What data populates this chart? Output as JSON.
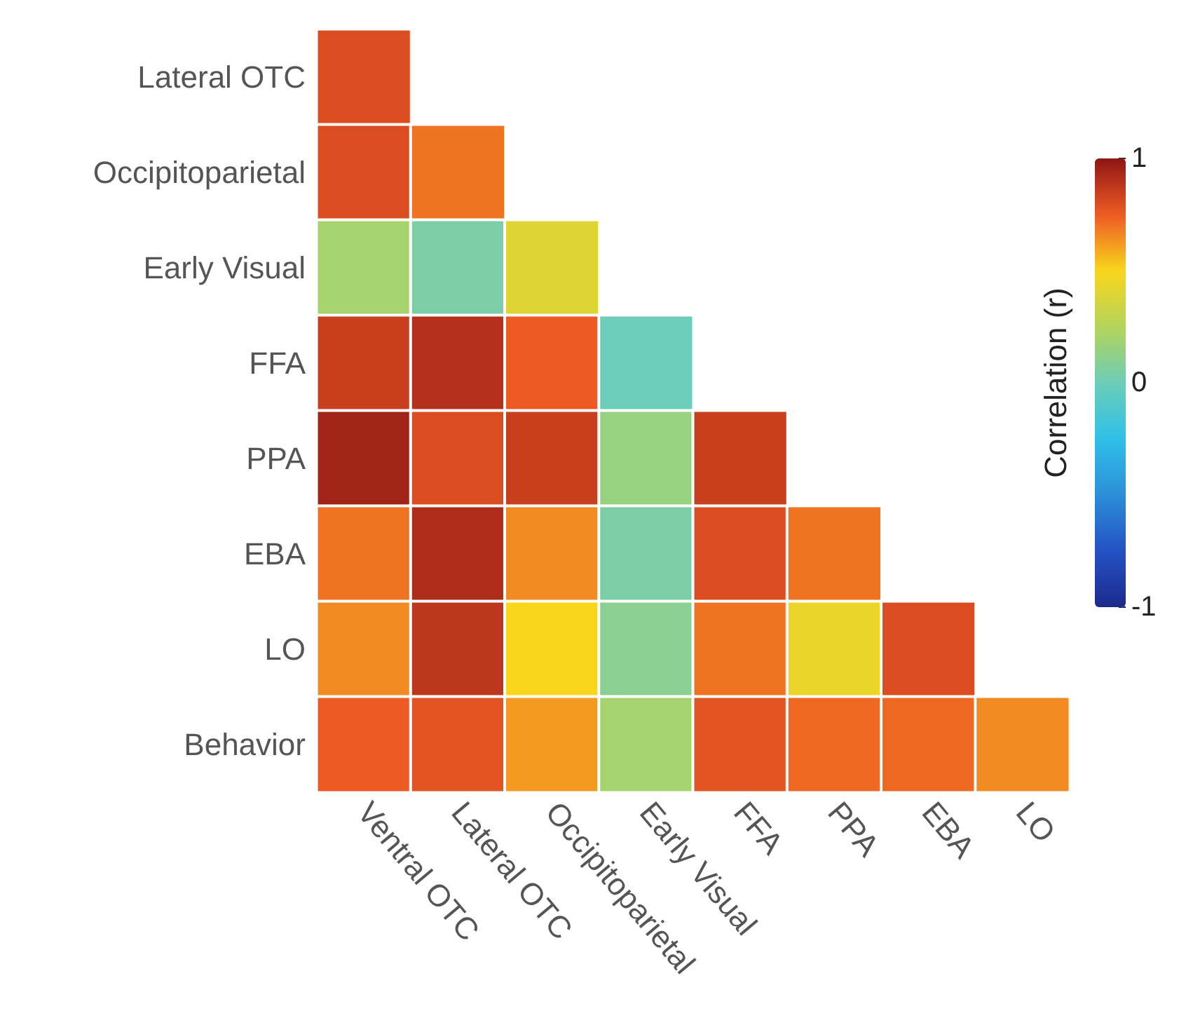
{
  "chart_data": {
    "type": "heatmap",
    "clabel": "Correlation (r)",
    "categories": [
      "Ventral OTC",
      "Lateral OTC",
      "Occipitoparietal",
      "Early Visual",
      "FFA",
      "PPA",
      "EBA",
      "LO"
    ],
    "y_categories": [
      "Lateral OTC",
      "Occipitoparietal",
      "Early Visual",
      "FFA",
      "PPA",
      "EBA",
      "LO",
      "Behavior"
    ],
    "cells": [
      [
        0.8,
        null,
        null,
        null,
        null,
        null,
        null,
        null
      ],
      [
        0.8,
        0.7,
        null,
        null,
        null,
        null,
        null,
        null
      ],
      [
        0.2,
        0.05,
        0.4,
        null,
        null,
        null,
        null,
        null
      ],
      [
        0.85,
        0.9,
        0.75,
        0.0,
        null,
        null,
        null,
        null
      ],
      [
        0.95,
        0.8,
        0.85,
        0.15,
        0.85,
        null,
        null,
        null
      ],
      [
        0.7,
        0.92,
        0.65,
        0.05,
        0.8,
        0.7,
        null,
        null
      ],
      [
        0.65,
        0.88,
        0.5,
        0.1,
        0.7,
        0.45,
        0.8,
        null
      ],
      [
        0.75,
        0.78,
        0.62,
        0.2,
        0.78,
        0.72,
        0.72,
        0.65
      ]
    ],
    "clim": [
      -1,
      1
    ],
    "cticks": [
      -1,
      0,
      1
    ]
  }
}
